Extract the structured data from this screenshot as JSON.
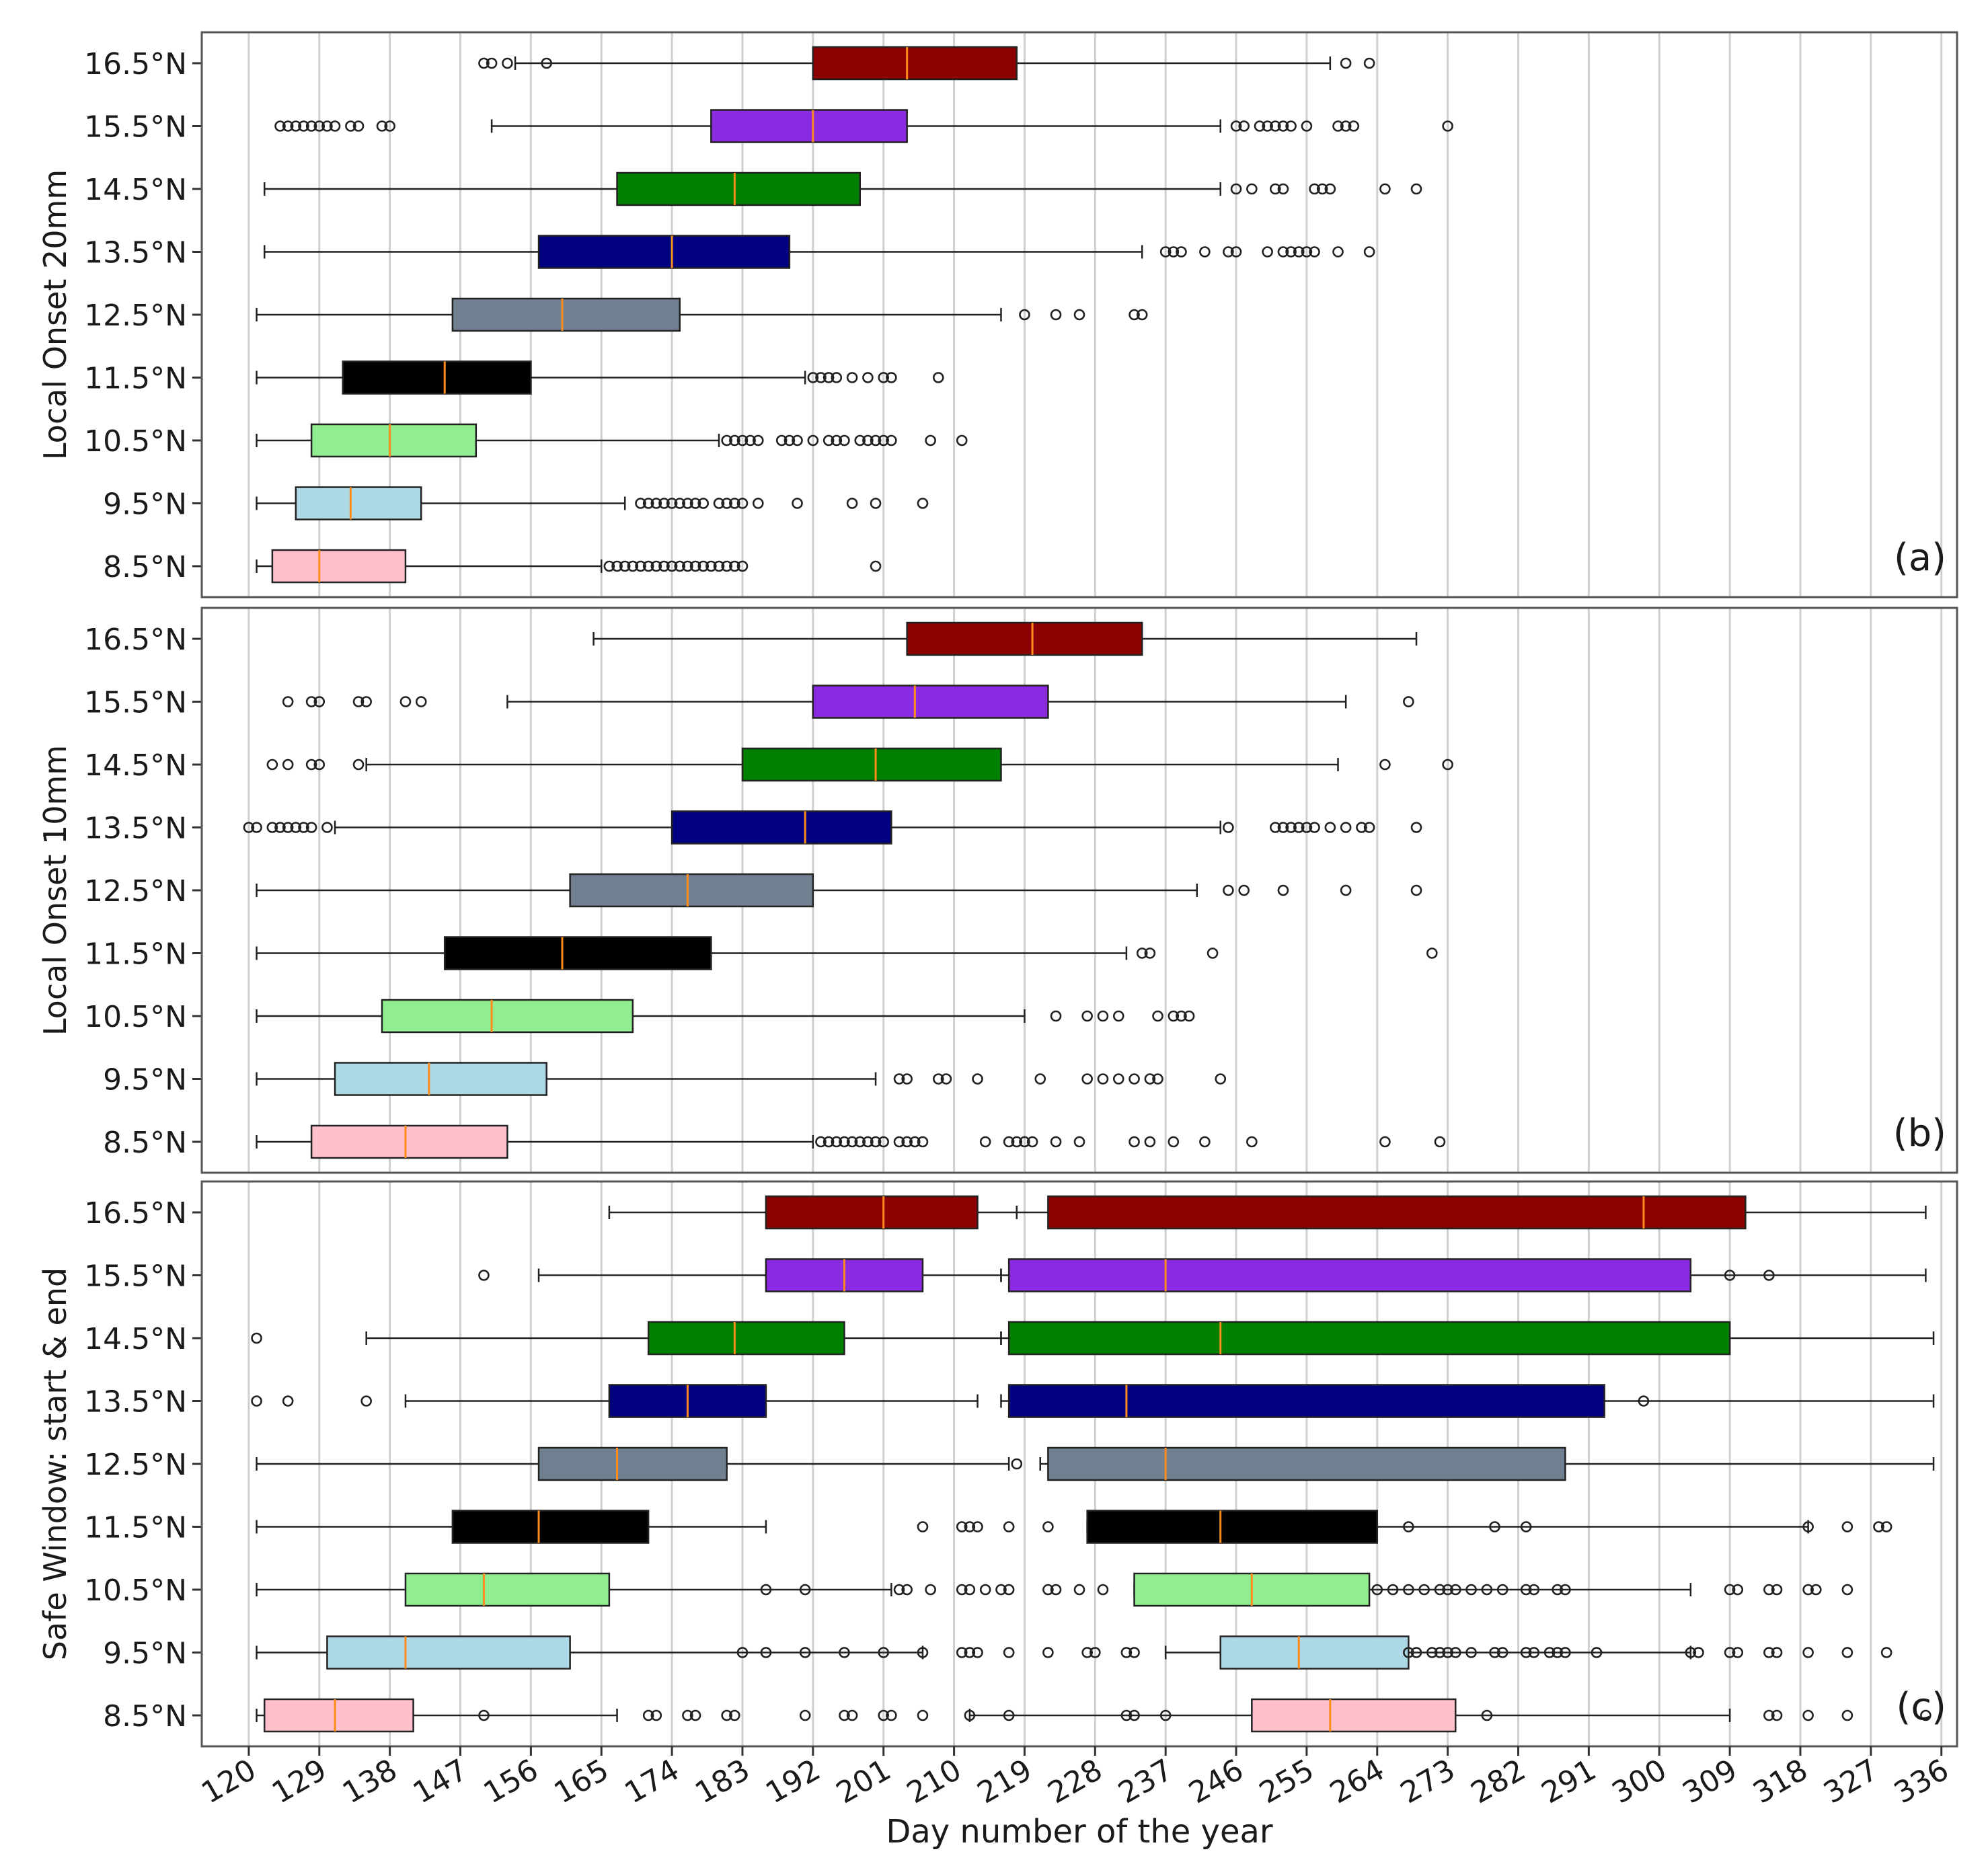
{
  "figure": {
    "x_axis_label": "Day number of the year",
    "x_ticks": [
      120,
      129,
      138,
      147,
      156,
      165,
      174,
      183,
      192,
      201,
      210,
      219,
      228,
      237,
      246,
      255,
      264,
      273,
      282,
      291,
      300,
      309,
      318,
      327,
      336
    ],
    "x_range": [
      114,
      338
    ]
  },
  "chart_data": [
    {
      "type": "box",
      "panel_label": "(a)",
      "ylabel": "Local Onset 20mm",
      "categories": [
        "16.5°N",
        "15.5°N",
        "14.5°N",
        "13.5°N",
        "12.5°N",
        "11.5°N",
        "10.5°N",
        "9.5°N",
        "8.5°N"
      ],
      "boxes": [
        {
          "category": "16.5°N",
          "color": "#8B0000",
          "whislo": 154,
          "q1": 192,
          "med": 204,
          "q3": 218,
          "whishi": 258,
          "fliers": [
            150,
            151,
            153,
            158,
            260,
            263
          ]
        },
        {
          "category": "15.5°N",
          "color": "#8A2BE2",
          "whislo": 151,
          "q1": 179,
          "med": 192,
          "q3": 204,
          "whishi": 244,
          "fliers": [
            124,
            125,
            126,
            127,
            128,
            129,
            130,
            131,
            133,
            134,
            137,
            138,
            246,
            247,
            249,
            250,
            251,
            252,
            253,
            255,
            259,
            260,
            261,
            273
          ]
        },
        {
          "category": "14.5°N",
          "color": "#008000",
          "whislo": 122,
          "q1": 167,
          "med": 182,
          "q3": 198,
          "whishi": 244,
          "fliers": [
            246,
            248,
            251,
            252,
            256,
            257,
            258,
            265,
            269
          ]
        },
        {
          "category": "13.5°N",
          "color": "#000080",
          "whislo": 122,
          "q1": 157,
          "med": 174,
          "q3": 189,
          "whishi": 234,
          "fliers": [
            237,
            238,
            239,
            242,
            245,
            246,
            250,
            252,
            253,
            254,
            255,
            256,
            259,
            263
          ]
        },
        {
          "category": "12.5°N",
          "color": "#708090",
          "whislo": 121,
          "q1": 146,
          "med": 160,
          "q3": 175,
          "whishi": 216,
          "fliers": [
            219,
            223,
            226,
            233,
            234
          ]
        },
        {
          "category": "11.5°N",
          "color": "#000000",
          "whislo": 121,
          "q1": 132,
          "med": 145,
          "q3": 156,
          "whishi": 191,
          "fliers": [
            192,
            193,
            194,
            195,
            197,
            199,
            201,
            202,
            208
          ]
        },
        {
          "category": "10.5°N",
          "color": "#90EE90",
          "whislo": 121,
          "q1": 128,
          "med": 138,
          "q3": 149,
          "whishi": 180,
          "fliers": [
            181,
            182,
            183,
            184,
            185,
            188,
            189,
            190,
            192,
            194,
            195,
            196,
            198,
            199,
            200,
            201,
            202,
            207,
            211
          ]
        },
        {
          "category": "9.5°N",
          "color": "#ADD8E6",
          "whislo": 121,
          "q1": 126,
          "med": 133,
          "q3": 142,
          "whishi": 168,
          "fliers": [
            170,
            171,
            172,
            173,
            174,
            175,
            176,
            177,
            178,
            180,
            181,
            182,
            183,
            185,
            190,
            197,
            200,
            206
          ]
        },
        {
          "category": "8.5°N",
          "color": "#FFC0CB",
          "whislo": 121,
          "q1": 123,
          "med": 129,
          "q3": 140,
          "whishi": 165,
          "fliers": [
            166,
            167,
            168,
            169,
            170,
            171,
            172,
            173,
            174,
            175,
            176,
            177,
            178,
            179,
            180,
            181,
            182,
            183,
            200
          ]
        }
      ]
    },
    {
      "type": "box",
      "panel_label": "(b)",
      "ylabel": "Local Onset 10mm",
      "categories": [
        "16.5°N",
        "15.5°N",
        "14.5°N",
        "13.5°N",
        "12.5°N",
        "11.5°N",
        "10.5°N",
        "9.5°N",
        "8.5°N"
      ],
      "boxes": [
        {
          "category": "16.5°N",
          "color": "#8B0000",
          "whislo": 164,
          "q1": 204,
          "med": 220,
          "q3": 234,
          "whishi": 269,
          "fliers": []
        },
        {
          "category": "15.5°N",
          "color": "#8A2BE2",
          "whislo": 153,
          "q1": 192,
          "med": 205,
          "q3": 222,
          "whishi": 260,
          "fliers": [
            125,
            128,
            129,
            134,
            135,
            140,
            142,
            268
          ]
        },
        {
          "category": "14.5°N",
          "color": "#008000",
          "whislo": 135,
          "q1": 183,
          "med": 200,
          "q3": 216,
          "whishi": 259,
          "fliers": [
            123,
            125,
            128,
            129,
            134,
            265,
            273
          ]
        },
        {
          "category": "13.5°N",
          "color": "#000080",
          "whislo": 131,
          "q1": 174,
          "med": 191,
          "q3": 202,
          "whishi": 244,
          "fliers": [
            120,
            121,
            123,
            124,
            125,
            126,
            127,
            128,
            130,
            245,
            251,
            252,
            253,
            254,
            255,
            256,
            258,
            260,
            262,
            263,
            269
          ]
        },
        {
          "category": "12.5°N",
          "color": "#708090",
          "whislo": 121,
          "q1": 161,
          "med": 176,
          "q3": 192,
          "whishi": 241,
          "fliers": [
            245,
            247,
            252,
            260,
            269
          ]
        },
        {
          "category": "11.5°N",
          "color": "#000000",
          "whislo": 121,
          "q1": 145,
          "med": 160,
          "q3": 179,
          "whishi": 232,
          "fliers": [
            234,
            235,
            243,
            271
          ]
        },
        {
          "category": "10.5°N",
          "color": "#90EE90",
          "whislo": 121,
          "q1": 137,
          "med": 151,
          "q3": 169,
          "whishi": 219,
          "fliers": [
            223,
            227,
            229,
            231,
            236,
            238,
            239,
            240
          ]
        },
        {
          "category": "9.5°N",
          "color": "#ADD8E6",
          "whislo": 121,
          "q1": 131,
          "med": 143,
          "q3": 158,
          "whishi": 200,
          "fliers": [
            203,
            204,
            208,
            209,
            213,
            221,
            227,
            229,
            231,
            233,
            235,
            236,
            244
          ]
        },
        {
          "category": "8.5°N",
          "color": "#FFC0CB",
          "whislo": 121,
          "q1": 128,
          "med": 140,
          "q3": 153,
          "whishi": 192,
          "fliers": [
            193,
            194,
            195,
            196,
            197,
            198,
            199,
            200,
            201,
            203,
            204,
            205,
            206,
            214,
            217,
            218,
            219,
            220,
            223,
            226,
            233,
            235,
            238,
            242,
            248,
            265,
            272
          ]
        }
      ]
    },
    {
      "type": "box",
      "panel_label": "(c)",
      "ylabel": "Safe Window: start & end",
      "categories": [
        "16.5°N",
        "15.5°N",
        "14.5°N",
        "13.5°N",
        "12.5°N",
        "11.5°N",
        "10.5°N",
        "9.5°N",
        "8.5°N"
      ],
      "boxes": [
        {
          "category": "16.5°N",
          "window": "start",
          "color": "#8B0000",
          "whislo": 166,
          "q1": 186,
          "med": 201,
          "q3": 213,
          "whishi": 218,
          "fliers": []
        },
        {
          "category": "16.5°N",
          "window": "end",
          "color": "#8B0000",
          "whislo": 218,
          "q1": 222,
          "med": 298,
          "q3": 311,
          "whishi": 334,
          "fliers": []
        },
        {
          "category": "15.5°N",
          "window": "start",
          "color": "#8A2BE2",
          "whislo": 157,
          "q1": 186,
          "med": 196,
          "q3": 206,
          "whishi": 216,
          "fliers": [
            150
          ]
        },
        {
          "category": "15.5°N",
          "window": "end",
          "color": "#8A2BE2",
          "whislo": 216,
          "q1": 217,
          "med": 237,
          "q3": 304,
          "whishi": 334,
          "fliers": [
            309,
            314
          ]
        },
        {
          "category": "14.5°N",
          "window": "start",
          "color": "#008000",
          "whislo": 135,
          "q1": 171,
          "med": 182,
          "q3": 196,
          "whishi": 216,
          "fliers": [
            121
          ]
        },
        {
          "category": "14.5°N",
          "window": "end",
          "color": "#008000",
          "whislo": 216,
          "q1": 217,
          "med": 244,
          "q3": 309,
          "whishi": 335,
          "fliers": []
        },
        {
          "category": "13.5°N",
          "window": "start",
          "color": "#000080",
          "whislo": 140,
          "q1": 166,
          "med": 176,
          "q3": 186,
          "whishi": 213,
          "fliers": [
            121,
            125,
            135
          ]
        },
        {
          "category": "13.5°N",
          "window": "end",
          "color": "#000080",
          "whislo": 216,
          "q1": 217,
          "med": 232,
          "q3": 293,
          "whishi": 335,
          "fliers": [
            298
          ]
        },
        {
          "category": "12.5°N",
          "window": "start",
          "color": "#708090",
          "whislo": 121,
          "q1": 157,
          "med": 167,
          "q3": 181,
          "whishi": 217,
          "fliers": [
            218
          ]
        },
        {
          "category": "12.5°N",
          "window": "end",
          "color": "#708090",
          "whislo": 221,
          "q1": 222,
          "med": 237,
          "q3": 288,
          "whishi": 335,
          "fliers": []
        },
        {
          "category": "11.5°N",
          "window": "start",
          "color": "#000000",
          "whislo": 121,
          "q1": 146,
          "med": 157,
          "q3": 171,
          "whishi": 186,
          "fliers": [
            206,
            211,
            212,
            213,
            217,
            222
          ]
        },
        {
          "category": "11.5°N",
          "window": "end",
          "color": "#000000",
          "whislo": 227,
          "q1": 227,
          "med": 244,
          "q3": 264,
          "whishi": 319,
          "fliers": [
            268,
            279,
            283,
            319,
            324,
            328,
            329
          ]
        },
        {
          "category": "10.5°N",
          "window": "start",
          "color": "#90EE90",
          "whislo": 121,
          "q1": 140,
          "med": 150,
          "q3": 166,
          "whishi": 202,
          "fliers": [
            186,
            191,
            203,
            204,
            207,
            211,
            212,
            214,
            216,
            217,
            222,
            223,
            226,
            229
          ]
        },
        {
          "category": "10.5°N",
          "window": "end",
          "color": "#90EE90",
          "whislo": 233,
          "q1": 233,
          "med": 248,
          "q3": 263,
          "whishi": 304,
          "fliers": [
            264,
            266,
            268,
            270,
            272,
            273,
            274,
            276,
            278,
            280,
            283,
            284,
            287,
            288,
            309,
            310,
            314,
            315,
            319,
            320,
            324
          ]
        },
        {
          "category": "9.5°N",
          "window": "start",
          "color": "#ADD8E6",
          "whislo": 121,
          "q1": 130,
          "med": 140,
          "q3": 161,
          "whishi": 206,
          "fliers": [
            183,
            186,
            191,
            196,
            201,
            206,
            211,
            212,
            213,
            217,
            222,
            227,
            228,
            232,
            233
          ]
        },
        {
          "category": "9.5°N",
          "window": "end",
          "color": "#ADD8E6",
          "whislo": 237,
          "q1": 244,
          "med": 254,
          "q3": 268,
          "whishi": 304,
          "fliers": [
            268,
            269,
            271,
            272,
            273,
            274,
            276,
            279,
            280,
            283,
            284,
            286,
            287,
            288,
            292,
            304,
            305,
            309,
            310,
            314,
            315,
            319,
            324,
            329
          ]
        },
        {
          "category": "8.5°N",
          "window": "start",
          "color": "#FFC0CB",
          "whislo": 121,
          "q1": 122,
          "med": 131,
          "q3": 141,
          "whishi": 167,
          "fliers": [
            150,
            171,
            172,
            176,
            177,
            181,
            182,
            191,
            196,
            197,
            201,
            202,
            206,
            212
          ]
        },
        {
          "category": "8.5°N",
          "window": "end",
          "color": "#FFC0CB",
          "whislo": 212,
          "q1": 248,
          "med": 258,
          "q3": 274,
          "whishi": 309,
          "fliers": [
            217,
            232,
            233,
            237,
            278,
            314,
            315,
            319,
            324,
            334
          ]
        }
      ]
    }
  ]
}
